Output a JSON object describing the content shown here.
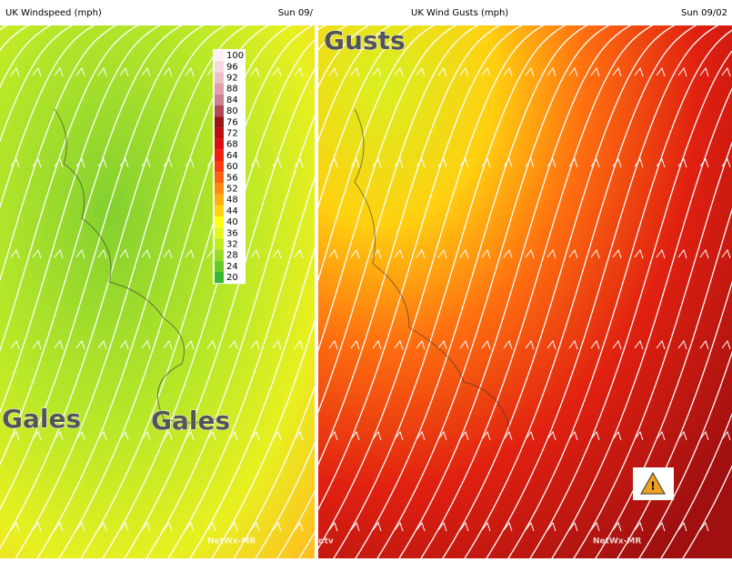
{
  "left_panel": {
    "title": "UK Windspeed (mph)",
    "date": "Sun 09/",
    "labels": [
      "Gales",
      "Gales"
    ],
    "credit": "NetWx-MR",
    "legend": {
      "values": [
        100,
        96,
        92,
        88,
        84,
        80,
        76,
        72,
        68,
        64,
        60,
        56,
        52,
        48,
        44,
        40,
        36,
        32,
        28,
        24,
        20
      ],
      "colors": [
        "#fdf0f4",
        "#f5d8e0",
        "#ecc0ca",
        "#dea0ac",
        "#cc8090",
        "#b04858",
        "#9c1414",
        "#bc1010",
        "#dc1010",
        "#f02010",
        "#ff3a10",
        "#ff6010",
        "#ff8a10",
        "#ffb010",
        "#ffd410",
        "#ffff10",
        "#e4f820",
        "#c0ec20",
        "#98dc20",
        "#68cc24",
        "#38b830"
      ]
    }
  },
  "right_panel": {
    "title": "UK Wind Gusts (mph)",
    "date": "Sun 09/02",
    "label": "Gusts",
    "credit": "NetWx-MR",
    "source_fragment": "r.tv"
  }
}
